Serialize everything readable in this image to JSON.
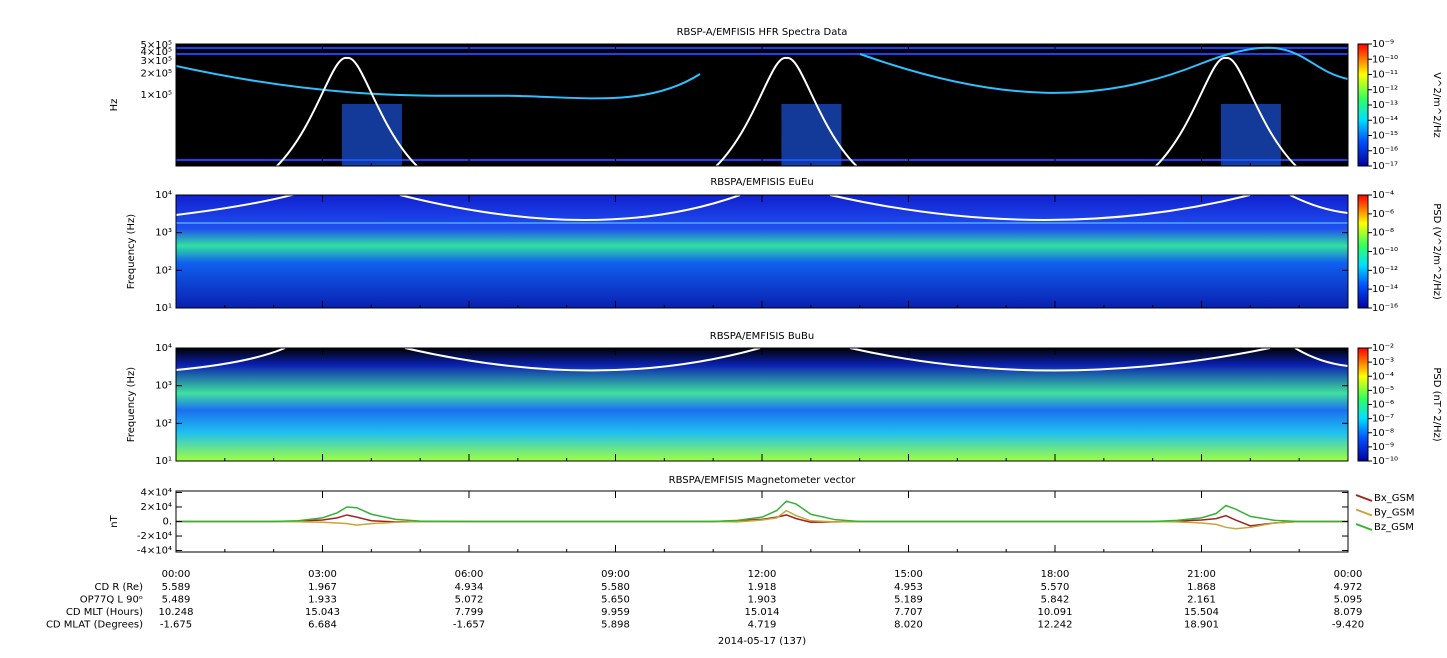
{
  "chart_data": [
    {
      "type": "spectrogram",
      "title": "RBSP-A/EMFISIS  HFR Spectra Data",
      "ylabel": "Hz",
      "ylog": true,
      "ylim": [
        10000,
        520000
      ],
      "yticks": [
        {
          "value": 500000,
          "label": "5×10⁵"
        },
        {
          "value": 400000,
          "label": "4×10⁵"
        },
        {
          "value": 300000,
          "label": "3×10⁵"
        },
        {
          "value": 200000,
          "label": "2×10⁵"
        },
        {
          "value": 100000,
          "label": "1×10⁵"
        }
      ],
      "colorbar": {
        "label": "V^2/m^2/Hz",
        "log": true,
        "lim": [
          1e-17,
          1e-09
        ],
        "ticks": [
          {
            "value": 1e-09,
            "label": "10⁻⁹"
          },
          {
            "value": 1e-10,
            "label": "10⁻¹⁰"
          },
          {
            "value": 1e-11,
            "label": "10⁻¹¹"
          },
          {
            "value": 1e-12,
            "label": "10⁻¹²"
          },
          {
            "value": 1e-13,
            "label": "10⁻¹³"
          },
          {
            "value": 1e-14,
            "label": "10⁻¹⁴"
          },
          {
            "value": 1e-15,
            "label": "10⁻¹⁵"
          },
          {
            "value": 1e-16,
            "label": "10⁻¹⁶"
          },
          {
            "value": 1e-17,
            "label": "10⁻¹⁷"
          }
        ]
      }
    },
    {
      "type": "spectrogram",
      "title": "RBSPA/EMFISIS  EuEu",
      "ylabel": "Frequency (Hz)",
      "ylog": true,
      "ylim": [
        10,
        10000
      ],
      "yticks": [
        {
          "value": 10000,
          "label": "10⁴"
        },
        {
          "value": 1000,
          "label": "10³"
        },
        {
          "value": 100,
          "label": "10²"
        },
        {
          "value": 10,
          "label": "10¹"
        }
      ],
      "colorbar": {
        "label": "PSD (V^2/m^2/Hz)",
        "log": true,
        "lim": [
          1e-16,
          0.0001
        ],
        "ticks": [
          {
            "value": 0.0001,
            "label": "10⁻⁴"
          },
          {
            "value": 1e-06,
            "label": "10⁻⁶"
          },
          {
            "value": 1e-08,
            "label": "10⁻⁸"
          },
          {
            "value": 1e-10,
            "label": "10⁻¹⁰"
          },
          {
            "value": 1e-12,
            "label": "10⁻¹²"
          },
          {
            "value": 1e-14,
            "label": "10⁻¹⁴"
          },
          {
            "value": 1e-16,
            "label": "10⁻¹⁶"
          }
        ]
      }
    },
    {
      "type": "spectrogram",
      "title": "RBSPA/EMFISIS  BuBu",
      "ylabel": "Frequency (Hz)",
      "ylog": true,
      "ylim": [
        10,
        10000
      ],
      "yticks": [
        {
          "value": 10000,
          "label": "10⁴"
        },
        {
          "value": 1000,
          "label": "10³"
        },
        {
          "value": 100,
          "label": "10²"
        },
        {
          "value": 10,
          "label": "10¹"
        }
      ],
      "colorbar": {
        "label": "PSD (nT^2/Hz)",
        "log": true,
        "lim": [
          1e-10,
          0.01
        ],
        "ticks": [
          {
            "value": 0.01,
            "label": "10⁻²"
          },
          {
            "value": 0.001,
            "label": "10⁻³"
          },
          {
            "value": 0.0001,
            "label": "10⁻⁴"
          },
          {
            "value": 1e-05,
            "label": "10⁻⁵"
          },
          {
            "value": 1e-06,
            "label": "10⁻⁶"
          },
          {
            "value": 1e-07,
            "label": "10⁻⁷"
          },
          {
            "value": 1e-08,
            "label": "10⁻⁸"
          },
          {
            "value": 1e-09,
            "label": "10⁻⁹"
          },
          {
            "value": 1e-10,
            "label": "10⁻¹⁰"
          }
        ]
      }
    },
    {
      "type": "line",
      "title": "RBSPA/EMFISIS  Magnetometer vector",
      "ylabel": "nT",
      "ylim": [
        -42000,
        42000
      ],
      "yticks": [
        {
          "value": 40000,
          "label": "4×10⁴"
        },
        {
          "value": 20000,
          "label": "2×10⁴"
        },
        {
          "value": 0,
          "label": "0."
        },
        {
          "value": -20000,
          "label": "-2×10⁴"
        },
        {
          "value": -40000,
          "label": "-4×10⁴"
        }
      ],
      "x": [
        0,
        2,
        2.5,
        3,
        3.3,
        3.5,
        3.7,
        4,
        4.5,
        5,
        6,
        11,
        11.5,
        12,
        12.3,
        12.5,
        12.7,
        13,
        13.5,
        14,
        20,
        20.5,
        21,
        21.3,
        21.5,
        21.7,
        22,
        22.5,
        23,
        24
      ],
      "series": [
        {
          "name": "Bx_GSM",
          "color": "#a3231c",
          "values": [
            0,
            0,
            500,
            2000,
            5000,
            9000,
            6000,
            1000,
            -500,
            0,
            0,
            0,
            1000,
            3000,
            6000,
            9000,
            4000,
            -1000,
            -500,
            0,
            0,
            500,
            2000,
            4000,
            8000,
            2000,
            -6000,
            -2000,
            0,
            0
          ]
        },
        {
          "name": "By_GSM",
          "color": "#c9a43a",
          "values": [
            0,
            0,
            -300,
            -1000,
            -2000,
            -3000,
            -5000,
            -3000,
            -1000,
            0,
            0,
            0,
            -500,
            2000,
            5000,
            15000,
            8000,
            1000,
            -500,
            0,
            0,
            -500,
            -2000,
            -4000,
            -8000,
            -10000,
            -8000,
            -2000,
            0,
            0
          ]
        },
        {
          "name": "Bz_GSM",
          "color": "#36b036",
          "values": [
            0,
            0,
            1000,
            5000,
            12000,
            20000,
            19000,
            10000,
            3000,
            500,
            0,
            0,
            1500,
            6000,
            15000,
            28000,
            24000,
            10000,
            2500,
            0,
            0,
            1500,
            5000,
            11000,
            22000,
            17000,
            7000,
            1500,
            0,
            0
          ]
        }
      ]
    }
  ],
  "time_axis": {
    "xlim": [
      0,
      24
    ],
    "xticks": [
      {
        "value": 0,
        "label": "00:00"
      },
      {
        "value": 3,
        "label": "03:00"
      },
      {
        "value": 6,
        "label": "06:00"
      },
      {
        "value": 9,
        "label": "09:00"
      },
      {
        "value": 12,
        "label": "12:00"
      },
      {
        "value": 15,
        "label": "15:00"
      },
      {
        "value": 18,
        "label": "18:00"
      },
      {
        "value": 21,
        "label": "21:00"
      },
      {
        "value": 24,
        "label": "00:00"
      }
    ],
    "date": "2014-05-17 (137)",
    "ephemeris": [
      {
        "label": "CD R (Re)",
        "values": [
          "5.589",
          "1.967",
          "4.934",
          "5.580",
          "1.918",
          "4.953",
          "5.570",
          "1.868",
          "4.972"
        ]
      },
      {
        "label": "OP77Q L 90ᵒ",
        "values": [
          "5.489",
          "1.933",
          "5.072",
          "5.650",
          "1.903",
          "5.189",
          "5.842",
          "2.161",
          "5.095"
        ]
      },
      {
        "label": "CD MLT (Hours)",
        "values": [
          "10.248",
          "15.043",
          "7.799",
          "9.959",
          "15.014",
          "7.707",
          "10.091",
          "15.504",
          "8.079"
        ]
      },
      {
        "label": "CD MLAT (Degrees)",
        "values": [
          "-1.675",
          "6.684",
          "-1.657",
          "5.898",
          "4.719",
          "8.020",
          "12.242",
          "18.901",
          "-9.420"
        ]
      }
    ]
  }
}
